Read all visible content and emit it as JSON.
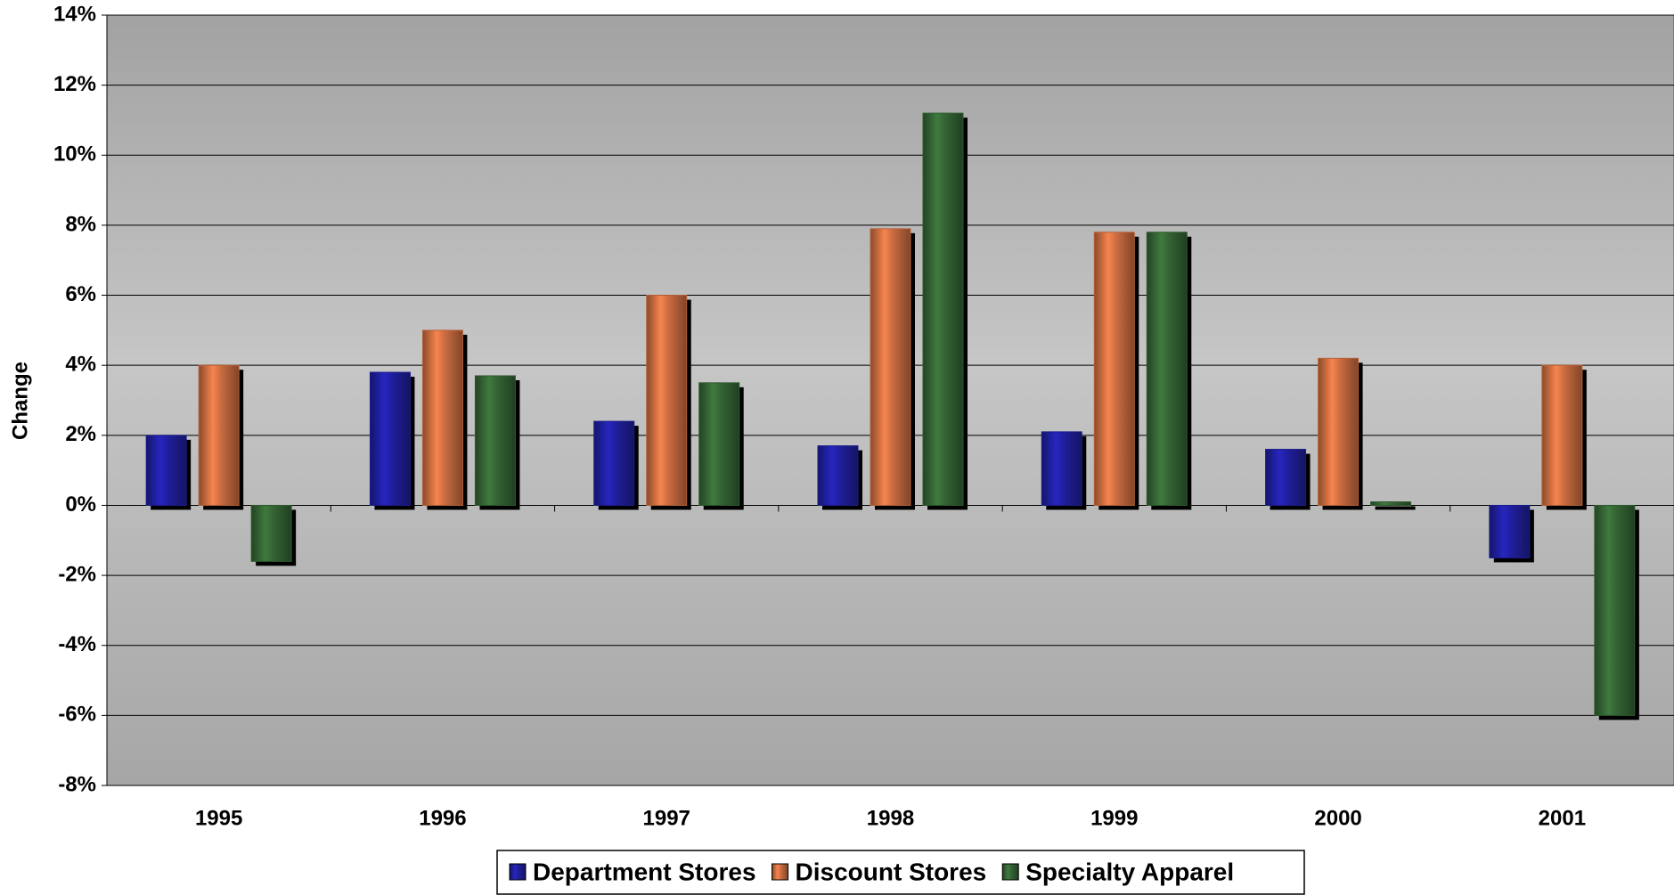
{
  "chart_data": {
    "type": "bar",
    "y_label": "Change",
    "categories": [
      "1995",
      "1996",
      "1997",
      "1998",
      "1999",
      "2000",
      "2001"
    ],
    "series": [
      {
        "name": "Department Stores",
        "color": "#1c1c8e",
        "values": [
          2.0,
          3.8,
          2.4,
          1.7,
          2.1,
          1.6,
          -1.5
        ]
      },
      {
        "name": "Discount Stores",
        "color": "#b8623a",
        "values": [
          4.0,
          5.0,
          6.0,
          7.9,
          7.8,
          4.2,
          4.0
        ]
      },
      {
        "name": "Specialty Apparel",
        "color": "#2f5a2f",
        "values": [
          -1.6,
          3.7,
          3.5,
          11.2,
          7.8,
          0.1,
          -6.0
        ]
      }
    ],
    "ylim": [
      -8,
      14
    ],
    "yticks": [
      {
        "value": -8,
        "label": "-8%"
      },
      {
        "value": -6,
        "label": "-6%"
      },
      {
        "value": -4,
        "label": "-4%"
      },
      {
        "value": -2,
        "label": "-2%"
      },
      {
        "value": 0,
        "label": "0%"
      },
      {
        "value": 2,
        "label": "2%"
      },
      {
        "value": 4,
        "label": "4%"
      },
      {
        "value": 6,
        "label": "6%"
      },
      {
        "value": 8,
        "label": "8%"
      },
      {
        "value": 10,
        "label": "10%"
      },
      {
        "value": 12,
        "label": "12%"
      },
      {
        "value": 14,
        "label": "14%"
      }
    ],
    "grid": true,
    "legend": "bottom"
  }
}
